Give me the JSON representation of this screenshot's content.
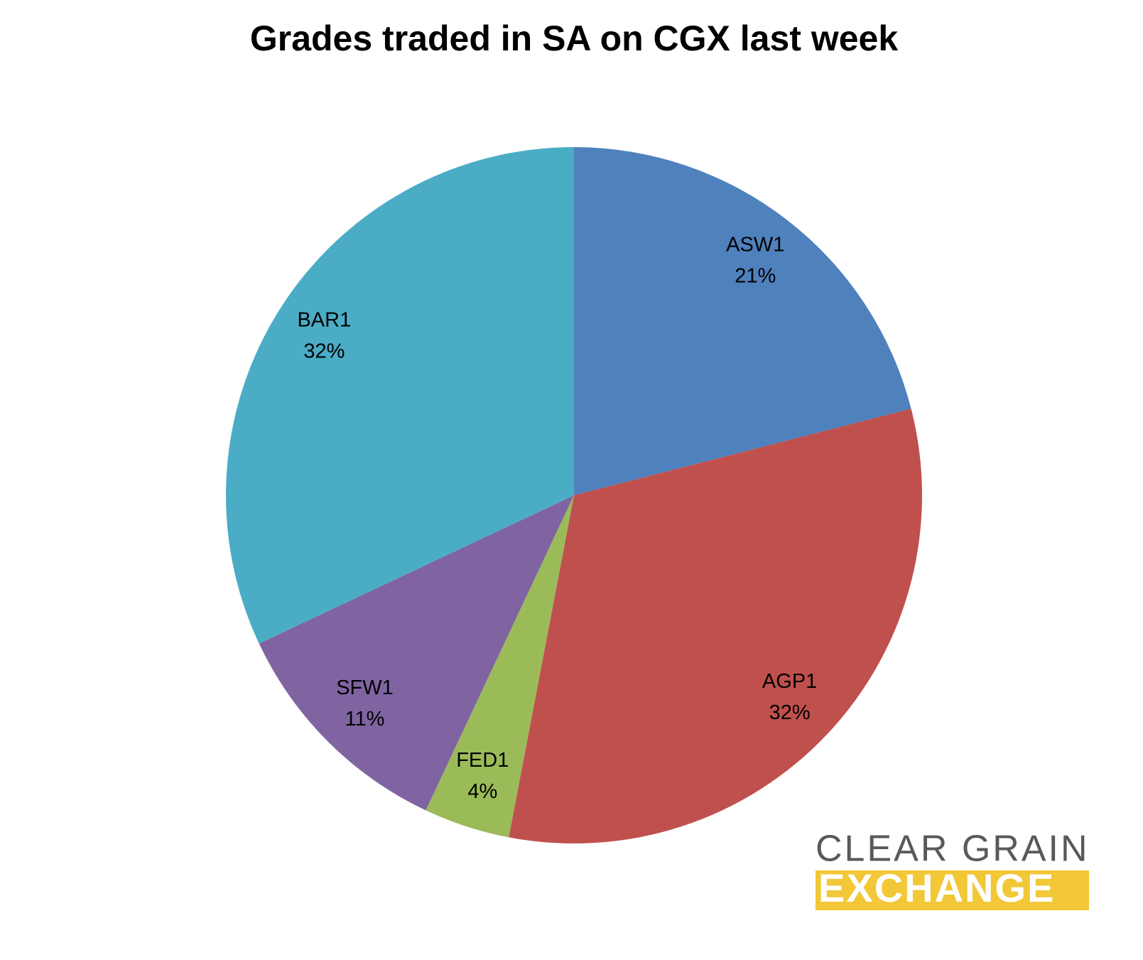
{
  "chart_data": {
    "type": "pie",
    "title": "Grades traded in SA on CGX last week",
    "categories": [
      "ASW1",
      "AGP1",
      "FED1",
      "SFW1",
      "BAR1"
    ],
    "values": [
      21,
      32,
      4,
      11,
      32
    ],
    "value_labels": [
      "21%",
      "32%",
      "4%",
      "11%",
      "32%"
    ],
    "colors": [
      "#4f81bd",
      "#c0504d",
      "#9bbb59",
      "#8064a2",
      "#4bacc6"
    ]
  },
  "logo": {
    "line1": "CLEAR GRAIN",
    "line2": "EXCHANGE"
  }
}
